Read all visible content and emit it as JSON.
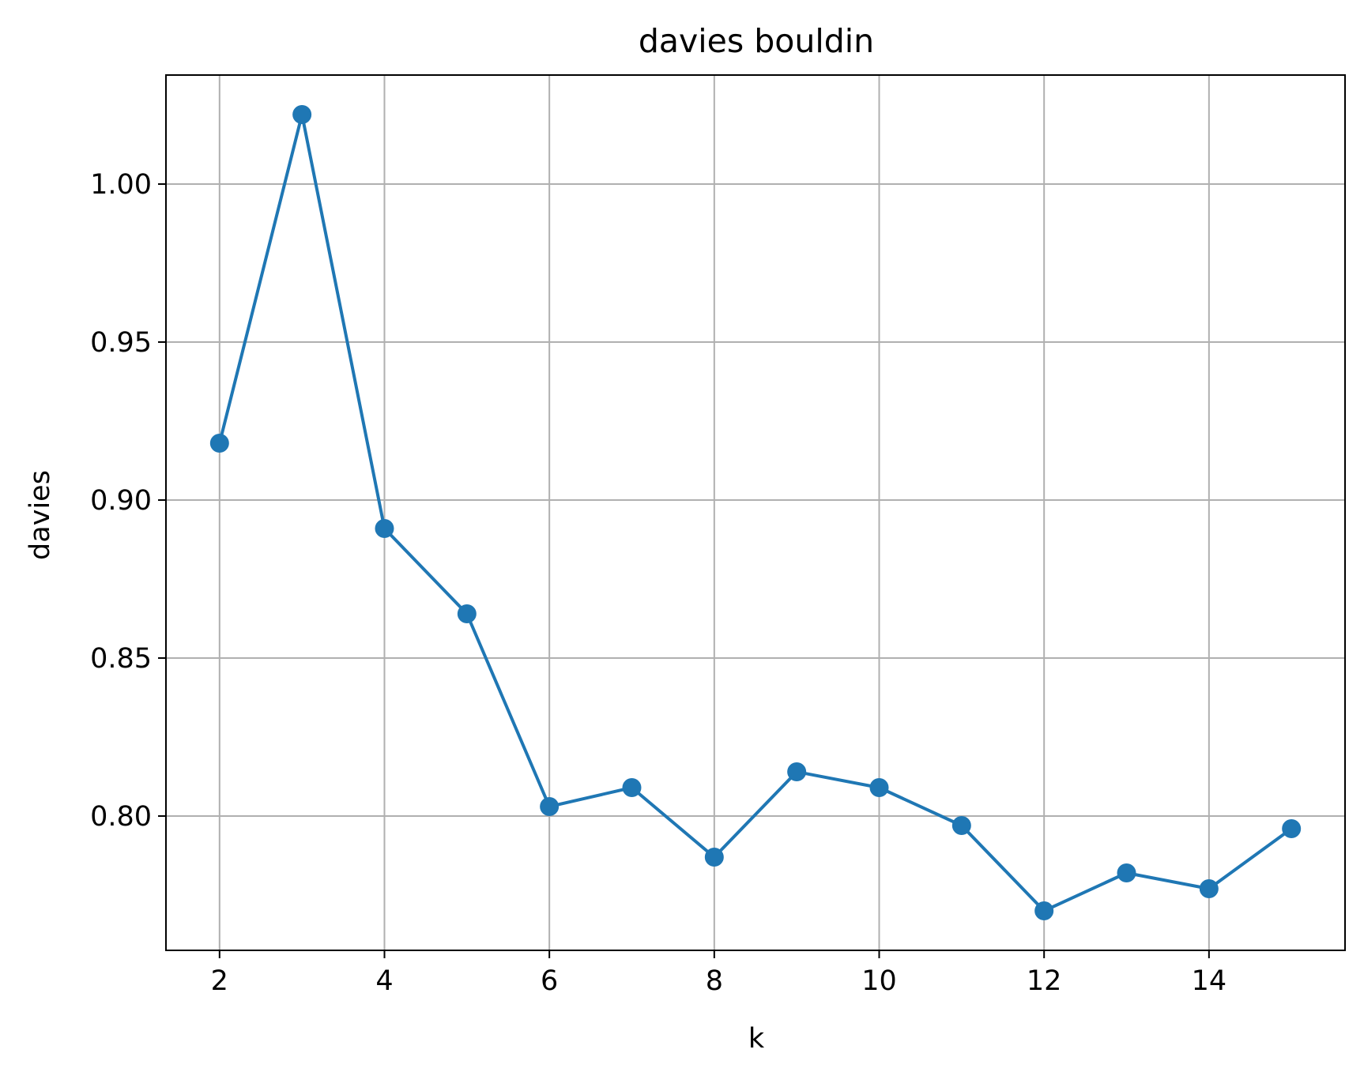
{
  "chart_data": {
    "type": "line",
    "title": "davies bouldin",
    "xlabel": "k",
    "ylabel": "davies",
    "x": [
      2,
      3,
      4,
      5,
      6,
      7,
      8,
      9,
      10,
      11,
      12,
      13,
      14,
      15
    ],
    "series": [
      {
        "values": [
          0.918,
          1.022,
          0.891,
          0.864,
          0.803,
          0.809,
          0.787,
          0.814,
          0.809,
          0.797,
          0.77,
          0.782,
          0.777,
          0.796
        ]
      }
    ],
    "xlim": [
      1.35,
      15.65
    ],
    "ylim": [
      0.7575,
      1.0345
    ],
    "xticks": [
      2,
      4,
      6,
      8,
      10,
      12,
      14
    ],
    "xtick_labels": [
      "2",
      "4",
      "6",
      "8",
      "10",
      "12",
      "14"
    ],
    "yticks": [
      0.8,
      0.85,
      0.9,
      0.95,
      1.0
    ],
    "ytick_labels": [
      "0.80",
      "0.85",
      "0.90",
      "0.95",
      "1.00"
    ],
    "grid": true,
    "marker": "circle",
    "colors": {
      "line": "#1f77b4",
      "grid": "#b0b0b0",
      "axes": "#000000"
    }
  }
}
